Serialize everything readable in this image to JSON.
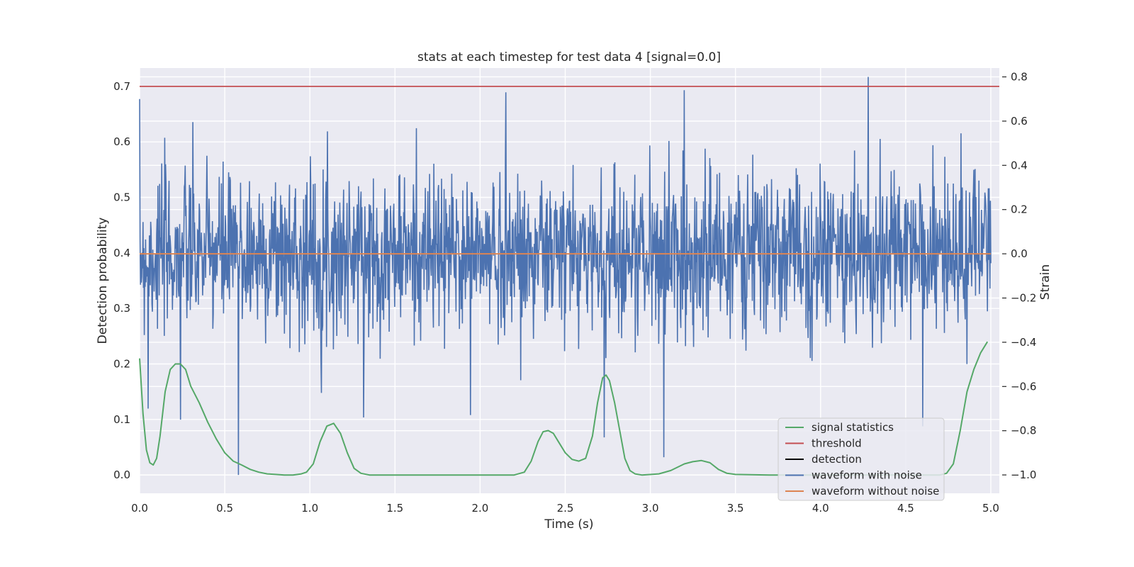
{
  "chart_data": {
    "type": "line",
    "title": "stats at each timestep for test data 4 [signal=0.0]",
    "xlabel": "Time (s)",
    "ylabel": "Detection probability",
    "y2label": "Strain",
    "xlim": [
      0.0,
      5.05
    ],
    "ylim": [
      -0.033,
      0.733
    ],
    "y2lim": [
      -1.083,
      0.84
    ],
    "x_ticks": [
      0.0,
      0.5,
      1.0,
      1.5,
      2.0,
      2.5,
      3.0,
      3.5,
      4.0,
      4.5,
      5.0
    ],
    "x_tick_labels": [
      "0.0",
      "0.5",
      "1.0",
      "1.5",
      "2.0",
      "2.5",
      "3.0",
      "3.5",
      "4.0",
      "4.5",
      "5.0"
    ],
    "y_ticks": [
      0.0,
      0.1,
      0.2,
      0.3,
      0.4,
      0.5,
      0.6,
      0.7
    ],
    "y_tick_labels": [
      "0.0",
      "0.1",
      "0.2",
      "0.3",
      "0.4",
      "0.5",
      "0.6",
      "0.7"
    ],
    "y2_ticks": [
      -1.0,
      -0.8,
      -0.6,
      -0.4,
      -0.2,
      0.0,
      0.2,
      0.4,
      0.6,
      0.8
    ],
    "y2_tick_labels": [
      "−1.0",
      "−0.8",
      "−0.6",
      "−0.4",
      "−0.2",
      "0.0",
      "0.2",
      "0.4",
      "0.6",
      "0.8"
    ],
    "grid": true,
    "legend_position": "lower-right",
    "series": [
      {
        "name": "signal statistics",
        "color": "#55a868",
        "axis": "left",
        "x": [
          0.0,
          0.02,
          0.04,
          0.06,
          0.08,
          0.1,
          0.12,
          0.15,
          0.18,
          0.21,
          0.24,
          0.27,
          0.3,
          0.35,
          0.4,
          0.45,
          0.5,
          0.55,
          0.6,
          0.65,
          0.7,
          0.75,
          0.8,
          0.85,
          0.9,
          0.95,
          0.98,
          1.02,
          1.06,
          1.1,
          1.14,
          1.18,
          1.22,
          1.26,
          1.3,
          1.35,
          1.4,
          1.5,
          1.75,
          2.0,
          2.2,
          2.26,
          2.3,
          2.34,
          2.37,
          2.4,
          2.43,
          2.46,
          2.5,
          2.54,
          2.58,
          2.62,
          2.66,
          2.69,
          2.72,
          2.74,
          2.76,
          2.79,
          2.82,
          2.85,
          2.88,
          2.91,
          2.95,
          3.05,
          3.12,
          3.2,
          3.25,
          3.3,
          3.35,
          3.4,
          3.45,
          3.5,
          3.7,
          4.0,
          4.3,
          4.6,
          4.7,
          4.74,
          4.78,
          4.82,
          4.86,
          4.9,
          4.94,
          4.98
        ],
        "values": [
          0.21,
          0.11,
          0.045,
          0.022,
          0.018,
          0.03,
          0.07,
          0.15,
          0.19,
          0.2,
          0.2,
          0.19,
          0.16,
          0.13,
          0.095,
          0.065,
          0.04,
          0.025,
          0.018,
          0.01,
          0.005,
          0.002,
          0.001,
          0.0,
          0.0,
          0.002,
          0.005,
          0.02,
          0.06,
          0.088,
          0.093,
          0.075,
          0.04,
          0.012,
          0.003,
          0.0,
          0.0,
          0.0,
          0.0,
          0.0,
          0.0,
          0.005,
          0.025,
          0.06,
          0.078,
          0.08,
          0.075,
          0.06,
          0.04,
          0.028,
          0.025,
          0.03,
          0.07,
          0.13,
          0.175,
          0.18,
          0.17,
          0.13,
          0.08,
          0.03,
          0.008,
          0.002,
          0.0,
          0.002,
          0.008,
          0.02,
          0.024,
          0.026,
          0.022,
          0.01,
          0.003,
          0.001,
          0.0,
          0.0,
          0.0,
          0.0,
          0.0,
          0.003,
          0.02,
          0.08,
          0.15,
          0.19,
          0.22,
          0.24
        ]
      },
      {
        "name": "threshold",
        "color": "#c44e52",
        "axis": "left",
        "x": [
          0.0,
          5.05
        ],
        "values": [
          0.7,
          0.7
        ]
      },
      {
        "name": "detection",
        "color": "#000000",
        "axis": "left",
        "x": [],
        "values": []
      },
      {
        "name": "waveform with noise",
        "color": "#4c72b0",
        "axis": "right",
        "x_range": [
          0.0,
          5.0
        ],
        "noise_std": 0.18,
        "samples": 2000,
        "peaks": [
          {
            "x": 0.05,
            "v": -0.7
          },
          {
            "x": 0.24,
            "v": -0.75
          },
          {
            "x": 0.58,
            "v": -1.0
          },
          {
            "x": 2.15,
            "v": 0.73
          },
          {
            "x": 2.73,
            "v": -0.83
          },
          {
            "x": 3.08,
            "v": -0.92
          },
          {
            "x": 3.2,
            "v": 0.74
          },
          {
            "x": 4.28,
            "v": 0.8
          },
          {
            "x": 4.6,
            "v": -0.78
          }
        ]
      },
      {
        "name": "waveform without noise",
        "color": "#dd8452",
        "axis": "right",
        "x": [
          0.0,
          5.0
        ],
        "values": [
          0.0,
          0.0
        ]
      }
    ]
  }
}
